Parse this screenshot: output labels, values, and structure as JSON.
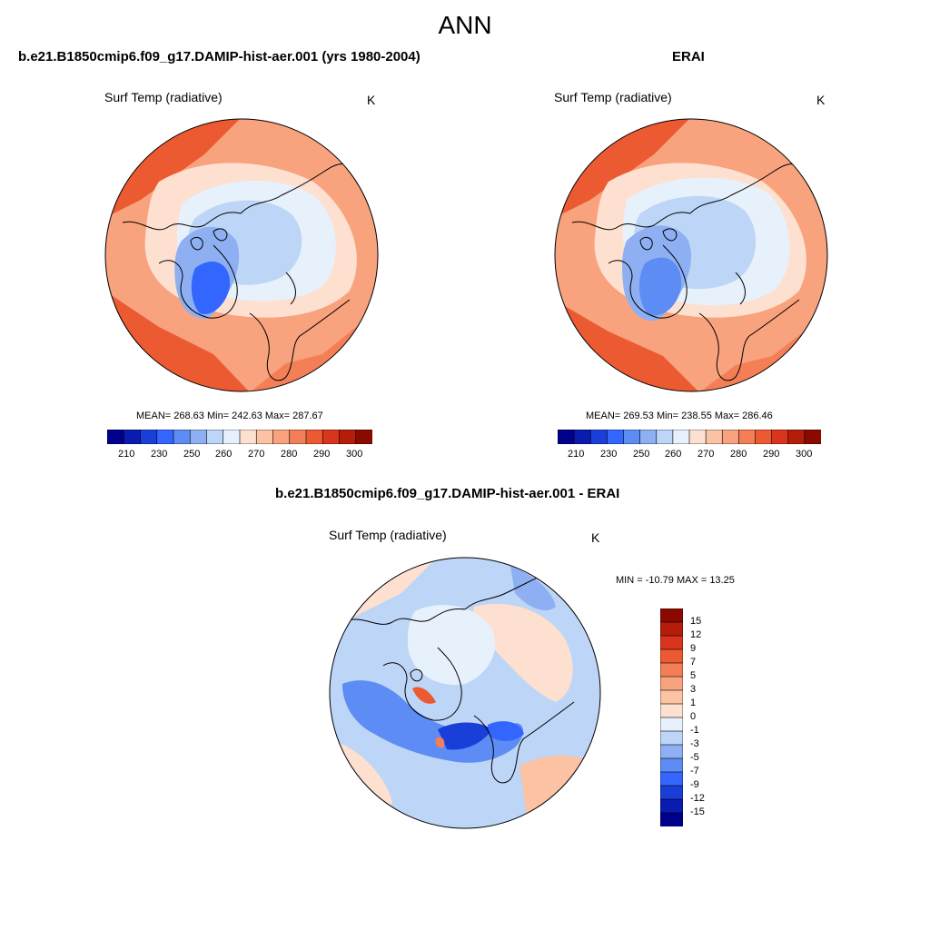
{
  "figure_title": "ANN",
  "colors": {
    "seq_palette": [
      "#00008a",
      "#0a1bb0",
      "#1a3fd8",
      "#3366ff",
      "#5d8cf5",
      "#8eb0f2",
      "#bdd5f6",
      "#e7f1fb",
      "#fde0d0",
      "#fbc2a4",
      "#f8a27e",
      "#f47f57",
      "#ec5a32",
      "#d9351c",
      "#b51c0a",
      "#8a0a00"
    ],
    "diff_palette": [
      "#00008a",
      "#0a1bb0",
      "#1a3fd8",
      "#3366ff",
      "#5d8cf5",
      "#8eb0f2",
      "#bdd5f6",
      "#e7f1fb",
      "#fde0d0",
      "#fbc2a4",
      "#f8a27e",
      "#f47f57",
      "#ec5a32",
      "#d9351c",
      "#b51c0a",
      "#8a0a00"
    ],
    "coast": "#000000"
  },
  "chart_data": [
    {
      "type": "heatmap",
      "projection": "north-polar-stereographic",
      "title": "b.e21.B1850cmip6.f09_g17.DAMIP-hist-aer.001 (yrs 1980-2004)",
      "variable_label": "Surf Temp (radiative)",
      "units": "K",
      "stats_text": "MEAN= 268.63  Min= 242.63  Max= 287.67",
      "mean": 268.63,
      "min": 242.63,
      "max": 287.67,
      "colorbar": {
        "orientation": "horizontal",
        "tick_labels": [
          "210",
          "230",
          "250",
          "260",
          "270",
          "280",
          "290",
          "300"
        ]
      }
    },
    {
      "type": "heatmap",
      "projection": "north-polar-stereographic",
      "title": "ERAI",
      "variable_label": "Surf Temp (radiative)",
      "units": "K",
      "stats_text": "MEAN= 269.53  Min= 238.55  Max= 286.46",
      "mean": 269.53,
      "min": 238.55,
      "max": 286.46,
      "colorbar": {
        "orientation": "horizontal",
        "tick_labels": [
          "210",
          "230",
          "250",
          "260",
          "270",
          "280",
          "290",
          "300"
        ]
      }
    },
    {
      "type": "heatmap",
      "projection": "north-polar-stereographic",
      "title": "b.e21.B1850cmip6.f09_g17.DAMIP-hist-aer.001 - ERAI",
      "variable_label": "Surf Temp (radiative)",
      "units": "K",
      "stats_text": "MIN = -10.79 MAX =  13.25",
      "min": -10.79,
      "max": 13.25,
      "colorbar": {
        "orientation": "vertical",
        "tick_labels": [
          "15",
          "12",
          "9",
          "7",
          "5",
          "3",
          "1",
          "0",
          "-1",
          "-3",
          "-5",
          "-7",
          "-9",
          "-12",
          "-15"
        ]
      }
    }
  ]
}
